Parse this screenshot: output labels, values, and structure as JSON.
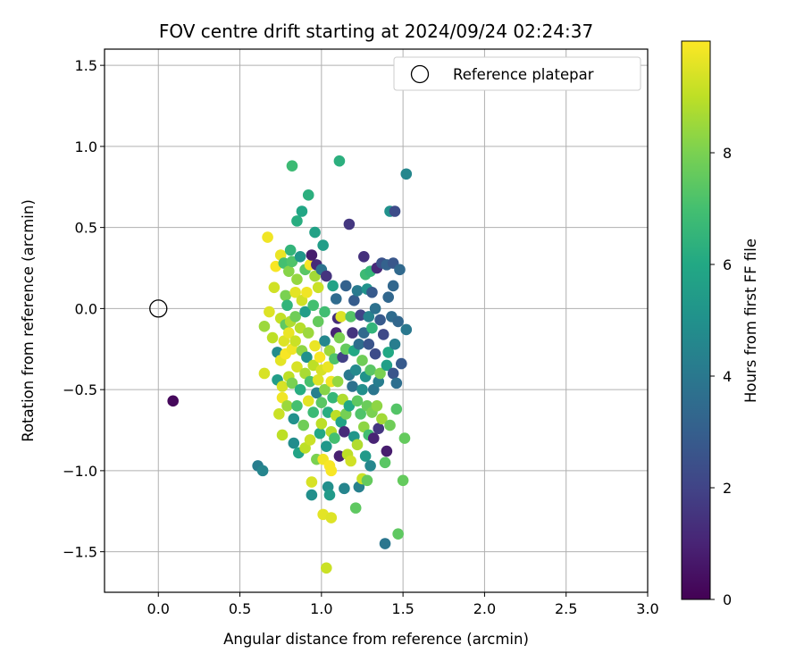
{
  "chart_data": {
    "type": "scatter",
    "title": "FOV centre drift starting at 2024/09/24 02:24:37",
    "xlabel": "Angular distance from reference (arcmin)",
    "ylabel": "Rotation from reference (arcmin)",
    "xlim": [
      -0.33,
      3.0
    ],
    "ylim": [
      -1.75,
      1.6
    ],
    "xticks": [
      0.0,
      0.5,
      1.0,
      1.5,
      2.0,
      2.5,
      3.0
    ],
    "xtick_labels": [
      "0.0",
      "0.5",
      "1.0",
      "1.5",
      "2.0",
      "2.5",
      "3.0"
    ],
    "yticks": [
      -1.5,
      -1.0,
      -0.5,
      0.0,
      0.5,
      1.0,
      1.5
    ],
    "ytick_labels": [
      "−1.5",
      "−1.0",
      "−0.5",
      "0.0",
      "0.5",
      "1.0",
      "1.5"
    ],
    "grid": true,
    "legend": {
      "position": "top-right",
      "entries": [
        {
          "label": "Reference platepar",
          "marker": "open-circle"
        }
      ]
    },
    "reference_point": {
      "x": 0.0,
      "y": 0.0
    },
    "colorbar": {
      "label": "Hours from first FF file",
      "colormap": "viridis",
      "range": [
        0,
        10
      ],
      "ticks": [
        0,
        2,
        4,
        6,
        8
      ],
      "tick_labels": [
        "0",
        "2",
        "4",
        "6",
        "8"
      ]
    },
    "points": [
      {
        "x": 0.09,
        "y": -0.57,
        "c": 0.2
      },
      {
        "x": 0.61,
        "y": -0.97,
        "c": 4.2
      },
      {
        "x": 0.64,
        "y": -1.0,
        "c": 4.5
      },
      {
        "x": 0.65,
        "y": -0.11,
        "c": 8.5
      },
      {
        "x": 0.65,
        "y": -0.4,
        "c": 9.4
      },
      {
        "x": 0.67,
        "y": 0.44,
        "c": 9.8
      },
      {
        "x": 0.68,
        "y": -0.02,
        "c": 9.5
      },
      {
        "x": 0.7,
        "y": -0.18,
        "c": 9.0
      },
      {
        "x": 0.71,
        "y": 0.13,
        "c": 9.3
      },
      {
        "x": 0.72,
        "y": 0.26,
        "c": 9.9
      },
      {
        "x": 0.73,
        "y": -0.27,
        "c": 4.8
      },
      {
        "x": 0.73,
        "y": -0.44,
        "c": 5.5
      },
      {
        "x": 0.74,
        "y": -0.65,
        "c": 9.2
      },
      {
        "x": 0.75,
        "y": 0.33,
        "c": 9.7
      },
      {
        "x": 0.75,
        "y": -0.06,
        "c": 9.1
      },
      {
        "x": 0.75,
        "y": -0.32,
        "c": 9.6
      },
      {
        "x": 0.76,
        "y": -0.48,
        "c": 9.4
      },
      {
        "x": 0.76,
        "y": -0.55,
        "c": 9.8
      },
      {
        "x": 0.76,
        "y": -0.78,
        "c": 9.0
      },
      {
        "x": 0.77,
        "y": 0.28,
        "c": 7.0
      },
      {
        "x": 0.77,
        "y": -0.2,
        "c": 9.5
      },
      {
        "x": 0.78,
        "y": 0.08,
        "c": 8.0
      },
      {
        "x": 0.78,
        "y": -0.1,
        "c": 7.5
      },
      {
        "x": 0.78,
        "y": -0.28,
        "c": 9.9
      },
      {
        "x": 0.79,
        "y": 0.02,
        "c": 6.5
      },
      {
        "x": 0.79,
        "y": -0.6,
        "c": 8.5
      },
      {
        "x": 0.8,
        "y": 0.23,
        "c": 8.2
      },
      {
        "x": 0.8,
        "y": -0.15,
        "c": 9.7
      },
      {
        "x": 0.8,
        "y": -0.42,
        "c": 9.0
      },
      {
        "x": 0.81,
        "y": 0.36,
        "c": 6.5
      },
      {
        "x": 0.81,
        "y": -0.08,
        "c": 8.8
      },
      {
        "x": 0.82,
        "y": 0.88,
        "c": 6.8
      },
      {
        "x": 0.82,
        "y": 0.29,
        "c": 7.2
      },
      {
        "x": 0.82,
        "y": -0.25,
        "c": 9.8
      },
      {
        "x": 0.82,
        "y": -0.46,
        "c": 8.0
      },
      {
        "x": 0.83,
        "y": -0.68,
        "c": 5.0
      },
      {
        "x": 0.83,
        "y": -0.83,
        "c": 4.8
      },
      {
        "x": 0.84,
        "y": 0.1,
        "c": 9.6
      },
      {
        "x": 0.84,
        "y": -0.05,
        "c": 7.8
      },
      {
        "x": 0.84,
        "y": -0.2,
        "c": 9.2
      },
      {
        "x": 0.85,
        "y": 0.54,
        "c": 6.2
      },
      {
        "x": 0.85,
        "y": 0.18,
        "c": 8.4
      },
      {
        "x": 0.85,
        "y": -0.36,
        "c": 9.4
      },
      {
        "x": 0.85,
        "y": -0.6,
        "c": 7.0
      },
      {
        "x": 0.86,
        "y": -0.89,
        "c": 5.8
      },
      {
        "x": 0.87,
        "y": 0.32,
        "c": 5.2
      },
      {
        "x": 0.87,
        "y": -0.12,
        "c": 8.9
      },
      {
        "x": 0.87,
        "y": -0.5,
        "c": 6.2
      },
      {
        "x": 0.88,
        "y": 0.6,
        "c": 5.9
      },
      {
        "x": 0.88,
        "y": 0.05,
        "c": 9.3
      },
      {
        "x": 0.88,
        "y": -0.26,
        "c": 8.3
      },
      {
        "x": 0.89,
        "y": -0.72,
        "c": 7.8
      },
      {
        "x": 0.9,
        "y": 0.24,
        "c": 7.4
      },
      {
        "x": 0.9,
        "y": -0.02,
        "c": 5.5
      },
      {
        "x": 0.9,
        "y": -0.4,
        "c": 8.7
      },
      {
        "x": 0.9,
        "y": -0.86,
        "c": 9.0
      },
      {
        "x": 0.91,
        "y": 0.1,
        "c": 9.8
      },
      {
        "x": 0.91,
        "y": -0.3,
        "c": 5.0
      },
      {
        "x": 0.92,
        "y": 0.7,
        "c": 6.3
      },
      {
        "x": 0.92,
        "y": -0.15,
        "c": 8.5
      },
      {
        "x": 0.92,
        "y": -0.57,
        "c": 9.6
      },
      {
        "x": 0.93,
        "y": 0.27,
        "c": 9.9
      },
      {
        "x": 0.93,
        "y": -0.45,
        "c": 7.1
      },
      {
        "x": 0.93,
        "y": -0.81,
        "c": 9.2
      },
      {
        "x": 0.94,
        "y": 0.33,
        "c": 0.8
      },
      {
        "x": 0.94,
        "y": -1.07,
        "c": 9.4
      },
      {
        "x": 0.94,
        "y": -1.15,
        "c": 4.9
      },
      {
        "x": 0.95,
        "y": 0.02,
        "c": 7.0
      },
      {
        "x": 0.95,
        "y": -0.35,
        "c": 9.0
      },
      {
        "x": 0.95,
        "y": -0.64,
        "c": 6.8
      },
      {
        "x": 0.96,
        "y": 0.47,
        "c": 5.7
      },
      {
        "x": 0.96,
        "y": 0.2,
        "c": 8.6
      },
      {
        "x": 0.96,
        "y": -0.23,
        "c": 9.7
      },
      {
        "x": 0.97,
        "y": 0.27,
        "c": 1.2
      },
      {
        "x": 0.97,
        "y": -0.52,
        "c": 4.3
      },
      {
        "x": 0.97,
        "y": -0.93,
        "c": 8.0
      },
      {
        "x": 0.98,
        "y": 0.13,
        "c": 9.2
      },
      {
        "x": 0.98,
        "y": -0.08,
        "c": 7.6
      },
      {
        "x": 0.98,
        "y": -0.44,
        "c": 9.5
      },
      {
        "x": 0.99,
        "y": -0.77,
        "c": 6.0
      },
      {
        "x": 0.99,
        "y": -0.3,
        "c": 9.9
      },
      {
        "x": 1.0,
        "y": 0.24,
        "c": 3.8
      },
      {
        "x": 1.0,
        "y": -0.38,
        "c": 9.4
      },
      {
        "x": 1.0,
        "y": -0.58,
        "c": 7.4
      },
      {
        "x": 1.0,
        "y": -0.71,
        "c": 9.0
      },
      {
        "x": 1.01,
        "y": 0.39,
        "c": 5.5
      },
      {
        "x": 1.01,
        "y": -1.27,
        "c": 9.6
      },
      {
        "x": 1.01,
        "y": -0.93,
        "c": 9.8
      },
      {
        "x": 1.02,
        "y": -0.02,
        "c": 6.9
      },
      {
        "x": 1.02,
        "y": -0.2,
        "c": 4.6
      },
      {
        "x": 1.02,
        "y": -0.5,
        "c": 8.2
      },
      {
        "x": 1.03,
        "y": 0.2,
        "c": 1.5
      },
      {
        "x": 1.03,
        "y": -0.85,
        "c": 5.3
      },
      {
        "x": 1.03,
        "y": -1.6,
        "c": 9.2
      },
      {
        "x": 1.04,
        "y": -0.36,
        "c": 9.7
      },
      {
        "x": 1.04,
        "y": -1.1,
        "c": 4.9
      },
      {
        "x": 1.04,
        "y": -0.64,
        "c": 6.2
      },
      {
        "x": 1.05,
        "y": -0.97,
        "c": 9.9
      },
      {
        "x": 1.05,
        "y": -0.26,
        "c": 8.5
      },
      {
        "x": 1.05,
        "y": -1.15,
        "c": 5.4
      },
      {
        "x": 1.06,
        "y": -0.45,
        "c": 9.8
      },
      {
        "x": 1.06,
        "y": -0.76,
        "c": 8.9
      },
      {
        "x": 1.06,
        "y": -1.0,
        "c": 9.9
      },
      {
        "x": 1.06,
        "y": -1.29,
        "c": 9.5
      },
      {
        "x": 1.07,
        "y": 0.14,
        "c": 5.8
      },
      {
        "x": 1.07,
        "y": -0.55,
        "c": 6.6
      },
      {
        "x": 1.08,
        "y": -0.31,
        "c": 7.2
      },
      {
        "x": 1.08,
        "y": -0.8,
        "c": 7.0
      },
      {
        "x": 1.09,
        "y": 0.06,
        "c": 3.5
      },
      {
        "x": 1.09,
        "y": -0.15,
        "c": 1.0
      },
      {
        "x": 1.09,
        "y": -0.66,
        "c": 9.0
      },
      {
        "x": 1.1,
        "y": -0.06,
        "c": 1.3
      },
      {
        "x": 1.1,
        "y": -0.45,
        "c": 8.4
      },
      {
        "x": 1.11,
        "y": -0.91,
        "c": 0.9
      },
      {
        "x": 1.11,
        "y": 0.91,
        "c": 6.3
      },
      {
        "x": 1.11,
        "y": -0.18,
        "c": 8.0
      },
      {
        "x": 1.12,
        "y": -0.7,
        "c": 5.8
      },
      {
        "x": 1.12,
        "y": -0.05,
        "c": 9.5
      },
      {
        "x": 1.13,
        "y": -0.3,
        "c": 1.9
      },
      {
        "x": 1.13,
        "y": -0.56,
        "c": 8.8
      },
      {
        "x": 1.14,
        "y": -1.11,
        "c": 4.5
      },
      {
        "x": 1.14,
        "y": -0.76,
        "c": 1.2
      },
      {
        "x": 1.15,
        "y": 0.14,
        "c": 3.1
      },
      {
        "x": 1.15,
        "y": -0.25,
        "c": 7.6
      },
      {
        "x": 1.15,
        "y": -0.65,
        "c": 7.9
      },
      {
        "x": 1.16,
        "y": -0.9,
        "c": 9.0
      },
      {
        "x": 1.17,
        "y": 0.52,
        "c": 1.6
      },
      {
        "x": 1.17,
        "y": -0.41,
        "c": 4.0
      },
      {
        "x": 1.17,
        "y": -0.6,
        "c": 6.0
      },
      {
        "x": 1.18,
        "y": -0.05,
        "c": 7.3
      },
      {
        "x": 1.18,
        "y": -0.94,
        "c": 9.3
      },
      {
        "x": 1.19,
        "y": -0.15,
        "c": 1.5
      },
      {
        "x": 1.19,
        "y": -0.48,
        "c": 3.7
      },
      {
        "x": 1.2,
        "y": 0.05,
        "c": 2.9
      },
      {
        "x": 1.2,
        "y": -0.26,
        "c": 6.0
      },
      {
        "x": 1.2,
        "y": -0.79,
        "c": 5.2
      },
      {
        "x": 1.21,
        "y": -1.23,
        "c": 7.5
      },
      {
        "x": 1.21,
        "y": -0.38,
        "c": 4.7
      },
      {
        "x": 1.22,
        "y": 0.11,
        "c": 4.1
      },
      {
        "x": 1.22,
        "y": -0.57,
        "c": 7.5
      },
      {
        "x": 1.22,
        "y": -0.84,
        "c": 8.8
      },
      {
        "x": 1.23,
        "y": -0.22,
        "c": 3.6
      },
      {
        "x": 1.23,
        "y": -1.1,
        "c": 4.3
      },
      {
        "x": 1.24,
        "y": -0.04,
        "c": 2.0
      },
      {
        "x": 1.24,
        "y": -0.65,
        "c": 7.2
      },
      {
        "x": 1.25,
        "y": -0.32,
        "c": 7.8
      },
      {
        "x": 1.25,
        "y": -0.5,
        "c": 4.9
      },
      {
        "x": 1.25,
        "y": -1.05,
        "c": 9.2
      },
      {
        "x": 1.26,
        "y": 0.32,
        "c": 1.4
      },
      {
        "x": 1.26,
        "y": -0.15,
        "c": 3.4
      },
      {
        "x": 1.26,
        "y": -0.73,
        "c": 8.3
      },
      {
        "x": 1.27,
        "y": 0.21,
        "c": 6.8
      },
      {
        "x": 1.27,
        "y": -0.42,
        "c": 5.1
      },
      {
        "x": 1.27,
        "y": -0.91,
        "c": 5.4
      },
      {
        "x": 1.28,
        "y": 0.12,
        "c": 5.1
      },
      {
        "x": 1.28,
        "y": -0.6,
        "c": 7.7
      },
      {
        "x": 1.28,
        "y": -1.06,
        "c": 7.6
      },
      {
        "x": 1.29,
        "y": -0.05,
        "c": 4.4
      },
      {
        "x": 1.29,
        "y": -0.22,
        "c": 2.6
      },
      {
        "x": 1.29,
        "y": -0.78,
        "c": 6.9
      },
      {
        "x": 1.3,
        "y": 0.23,
        "c": 6.6
      },
      {
        "x": 1.3,
        "y": -0.38,
        "c": 7.4
      },
      {
        "x": 1.3,
        "y": -0.97,
        "c": 4.6
      },
      {
        "x": 1.31,
        "y": 0.1,
        "c": 2.8
      },
      {
        "x": 1.31,
        "y": -0.12,
        "c": 6.5
      },
      {
        "x": 1.31,
        "y": -0.64,
        "c": 8.0
      },
      {
        "x": 1.32,
        "y": -0.5,
        "c": 3.9
      },
      {
        "x": 1.32,
        "y": -0.8,
        "c": 1.0
      },
      {
        "x": 1.33,
        "y": 0.0,
        "c": 3.7
      },
      {
        "x": 1.33,
        "y": -0.28,
        "c": 2.3
      },
      {
        "x": 1.34,
        "y": 0.25,
        "c": 1.2
      },
      {
        "x": 1.34,
        "y": -0.6,
        "c": 8.3
      },
      {
        "x": 1.35,
        "y": -0.45,
        "c": 4.2
      },
      {
        "x": 1.35,
        "y": -0.74,
        "c": 1.6
      },
      {
        "x": 1.36,
        "y": -0.07,
        "c": 2.8
      },
      {
        "x": 1.36,
        "y": -0.4,
        "c": 8.0
      },
      {
        "x": 1.37,
        "y": 0.28,
        "c": 2.5
      },
      {
        "x": 1.37,
        "y": -0.68,
        "c": 8.6
      },
      {
        "x": 1.38,
        "y": -0.16,
        "c": 2.2
      },
      {
        "x": 1.39,
        "y": -1.45,
        "c": 3.9
      },
      {
        "x": 1.39,
        "y": -0.95,
        "c": 7.4
      },
      {
        "x": 1.4,
        "y": 0.27,
        "c": 3.1
      },
      {
        "x": 1.4,
        "y": -0.35,
        "c": 5.6
      },
      {
        "x": 1.4,
        "y": -0.88,
        "c": 0.8
      },
      {
        "x": 1.41,
        "y": 0.07,
        "c": 3.3
      },
      {
        "x": 1.41,
        "y": -0.27,
        "c": 6.0
      },
      {
        "x": 1.42,
        "y": 0.6,
        "c": 5.0
      },
      {
        "x": 1.42,
        "y": -0.72,
        "c": 7.8
      },
      {
        "x": 1.43,
        "y": -0.05,
        "c": 3.5
      },
      {
        "x": 1.44,
        "y": 0.28,
        "c": 2.7
      },
      {
        "x": 1.44,
        "y": 0.14,
        "c": 3.3
      },
      {
        "x": 1.44,
        "y": -0.4,
        "c": 2.6
      },
      {
        "x": 1.45,
        "y": 0.6,
        "c": 2.3
      },
      {
        "x": 1.45,
        "y": -0.22,
        "c": 4.2
      },
      {
        "x": 1.46,
        "y": -0.46,
        "c": 3.6
      },
      {
        "x": 1.46,
        "y": -0.62,
        "c": 7.3
      },
      {
        "x": 1.47,
        "y": -1.39,
        "c": 7.5
      },
      {
        "x": 1.47,
        "y": -0.08,
        "c": 3.3
      },
      {
        "x": 1.48,
        "y": 0.24,
        "c": 3.4
      },
      {
        "x": 1.49,
        "y": -0.34,
        "c": 2.8
      },
      {
        "x": 1.5,
        "y": -1.06,
        "c": 7.6
      },
      {
        "x": 1.51,
        "y": -0.8,
        "c": 7.6
      },
      {
        "x": 1.52,
        "y": 0.83,
        "c": 4.6
      },
      {
        "x": 1.52,
        "y": -0.13,
        "c": 4.0
      }
    ]
  }
}
